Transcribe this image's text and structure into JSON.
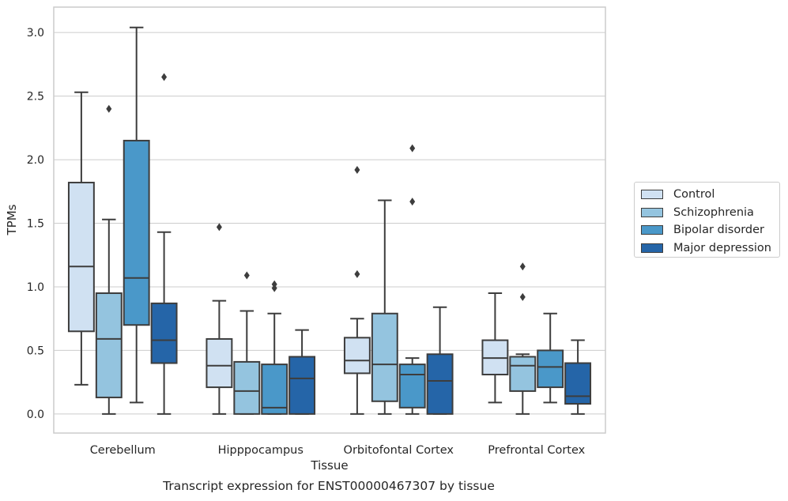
{
  "chart_data": {
    "type": "box",
    "title": "",
    "caption": "Transcript expression for ENST00000467307 by tissue",
    "xlabel": "Tissue",
    "ylabel": "TPMs",
    "ylim": [
      -0.15,
      3.2
    ],
    "yticks": [
      "0.0",
      "0.5",
      "1.0",
      "1.5",
      "2.0",
      "2.5",
      "3.0"
    ],
    "grid": true,
    "legend_position": "right",
    "categories": [
      "Cerebellum",
      "Hipppocampus",
      "Orbitofontal Cortex",
      "Prefrontal Cortex"
    ],
    "series": [
      {
        "name": "Control",
        "color": "#d0e1f2",
        "boxes": [
          {
            "q1": 0.65,
            "median": 1.16,
            "q3": 1.82,
            "whisker_low": 0.23,
            "whisker_high": 2.53,
            "outliers": []
          },
          {
            "q1": 0.21,
            "median": 0.38,
            "q3": 0.59,
            "whisker_low": 0.0,
            "whisker_high": 0.89,
            "outliers": [
              1.47
            ]
          },
          {
            "q1": 0.32,
            "median": 0.42,
            "q3": 0.6,
            "whisker_low": 0.0,
            "whisker_high": 0.75,
            "outliers": [
              1.1,
              1.92
            ]
          },
          {
            "q1": 0.31,
            "median": 0.44,
            "q3": 0.58,
            "whisker_low": 0.09,
            "whisker_high": 0.95,
            "outliers": []
          }
        ]
      },
      {
        "name": "Schizophrenia",
        "color": "#94c4df",
        "boxes": [
          {
            "q1": 0.13,
            "median": 0.59,
            "q3": 0.95,
            "whisker_low": 0.0,
            "whisker_high": 1.53,
            "outliers": [
              2.4
            ]
          },
          {
            "q1": 0.0,
            "median": 0.18,
            "q3": 0.41,
            "whisker_low": 0.0,
            "whisker_high": 0.81,
            "outliers": [
              1.09
            ]
          },
          {
            "q1": 0.1,
            "median": 0.39,
            "q3": 0.79,
            "whisker_low": 0.0,
            "whisker_high": 1.68,
            "outliers": []
          },
          {
            "q1": 0.18,
            "median": 0.38,
            "q3": 0.45,
            "whisker_low": 0.0,
            "whisker_high": 0.47,
            "outliers": [
              0.92,
              1.16
            ]
          }
        ]
      },
      {
        "name": "Bipolar disorder",
        "color": "#4a98c9",
        "boxes": [
          {
            "q1": 0.7,
            "median": 1.07,
            "q3": 2.15,
            "whisker_low": 0.09,
            "whisker_high": 3.04,
            "outliers": []
          },
          {
            "q1": 0.0,
            "median": 0.05,
            "q3": 0.39,
            "whisker_low": 0.0,
            "whisker_high": 0.79,
            "outliers": [
              0.99,
              1.02
            ]
          },
          {
            "q1": 0.05,
            "median": 0.31,
            "q3": 0.39,
            "whisker_low": 0.0,
            "whisker_high": 0.44,
            "outliers": [
              1.67,
              2.09
            ]
          },
          {
            "q1": 0.21,
            "median": 0.37,
            "q3": 0.5,
            "whisker_low": 0.09,
            "whisker_high": 0.79,
            "outliers": []
          }
        ]
      },
      {
        "name": "Major depression",
        "color": "#2565a8",
        "boxes": [
          {
            "q1": 0.4,
            "median": 0.58,
            "q3": 0.87,
            "whisker_low": 0.0,
            "whisker_high": 1.43,
            "outliers": [
              2.65
            ]
          },
          {
            "q1": 0.0,
            "median": 0.28,
            "q3": 0.45,
            "whisker_low": 0.0,
            "whisker_high": 0.66,
            "outliers": []
          },
          {
            "q1": 0.0,
            "median": 0.26,
            "q3": 0.47,
            "whisker_low": 0.0,
            "whisker_high": 0.84,
            "outliers": []
          },
          {
            "q1": 0.08,
            "median": 0.14,
            "q3": 0.4,
            "whisker_low": 0.0,
            "whisker_high": 0.58,
            "outliers": []
          }
        ]
      }
    ]
  }
}
